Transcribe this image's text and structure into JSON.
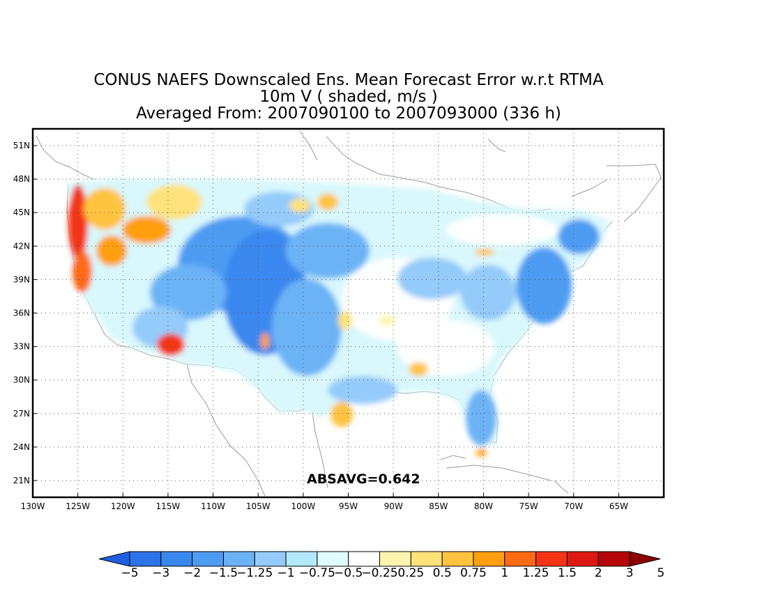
{
  "title": {
    "line1": "CONUS NAEFS Downscaled Ens. Mean Forecast Error w.r.t RTMA",
    "line2": "10m V ( shaded, m/s )",
    "line3": "Averaged From: 2007090100 to 2007093000 (336 h)"
  },
  "map": {
    "lon_range": [
      -130,
      -60
    ],
    "lat_range": [
      19.5,
      52.5
    ],
    "lat_ticks": [
      "51N",
      "48N",
      "45N",
      "42N",
      "39N",
      "36N",
      "33N",
      "30N",
      "27N",
      "24N",
      "21N"
    ],
    "lat_values": [
      51,
      48,
      45,
      42,
      39,
      36,
      33,
      30,
      27,
      24,
      21
    ],
    "lon_ticks": [
      "130W",
      "125W",
      "120W",
      "115W",
      "110W",
      "105W",
      "100W",
      "95W",
      "90W",
      "85W",
      "80W",
      "75W",
      "70W",
      "65W"
    ],
    "lon_values": [
      -130,
      -125,
      -120,
      -115,
      -110,
      -105,
      -100,
      -95,
      -90,
      -85,
      -80,
      -75,
      -70,
      -65
    ],
    "gridlines": true,
    "annotation": "ABSAVG=0.642"
  },
  "colorbar": {
    "labels": [
      "-5",
      "-3",
      "-2",
      "-1.5",
      "-1.25",
      "-1",
      "-0.75",
      "-0.5",
      "-0.25",
      "0.25",
      "0.5",
      "0.75",
      "1",
      "1.25",
      "1.5",
      "2",
      "3",
      "5"
    ],
    "colors": [
      "#1e5fe0",
      "#2a73e8",
      "#3a88ee",
      "#4e9cf2",
      "#6cb3f6",
      "#94cbfa",
      "#b4e8fb",
      "#e0fcff",
      "#ffffff",
      "#fff5b0",
      "#ffe27a",
      "#ffc340",
      "#ff9f10",
      "#ff6a12",
      "#f43416",
      "#dc1814",
      "#b40608",
      "#8c0000"
    ]
  }
}
